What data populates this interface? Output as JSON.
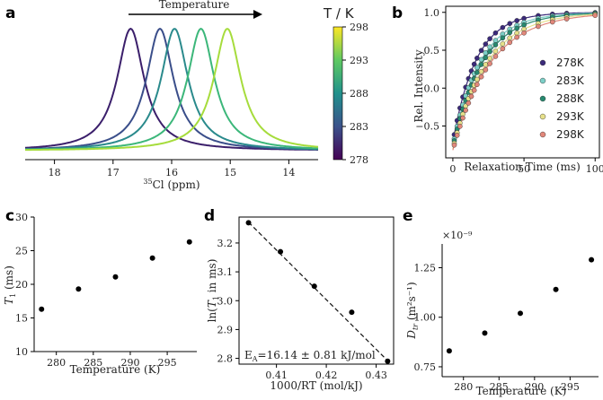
{
  "panels": {
    "a": "a",
    "b": "b",
    "c": "c",
    "d": "d",
    "e": "e"
  },
  "chart_data": [
    {
      "id": "a",
      "type": "line",
      "title": "Temperature",
      "xlabel": "35Cl (ppm)",
      "xlabel_sup": "35",
      "xlabel_main": "Cl (ppm)",
      "xlim": [
        18.5,
        13.5
      ],
      "xticks": [
        18,
        17,
        16,
        15,
        14
      ],
      "series": [
        {
          "name": "278 K",
          "center": 16.7,
          "color": "#3b1f6b"
        },
        {
          "name": "283 K",
          "center": 16.2,
          "color": "#3a4e8a"
        },
        {
          "name": "288 K",
          "center": 15.95,
          "color": "#2a8a8c"
        },
        {
          "name": "293 K",
          "center": 15.5,
          "color": "#3cb77a"
        },
        {
          "name": "298 K",
          "center": 15.05,
          "color": "#a6dc3c"
        }
      ],
      "colorbar": {
        "label": "T / K",
        "min": 278,
        "max": 298,
        "ticks": [
          278,
          283,
          288,
          293,
          298
        ]
      }
    },
    {
      "id": "b",
      "type": "scatter",
      "xlabel": "Relaxation Time (ms)",
      "ylabel": "Rel. Intensity",
      "xlim": [
        -5,
        103
      ],
      "ylim": [
        -0.92,
        1.08
      ],
      "xticks": [
        0,
        50,
        100
      ],
      "yticks": [
        -0.5,
        0.0,
        0.5,
        1.0
      ],
      "ytick_labels": [
        "−0.5",
        "0.0",
        "0.5",
        "1.0"
      ],
      "x_points": [
        1,
        3,
        5,
        7,
        9,
        11,
        13,
        15,
        17,
        20,
        23,
        26,
        30,
        35,
        40,
        45,
        50,
        60,
        70,
        80,
        100
      ],
      "series": [
        {
          "name": "278K",
          "T1": 16.3,
          "color": "#3b2a7a"
        },
        {
          "name": "283K",
          "T1": 19.3,
          "color": "#7ccfc7"
        },
        {
          "name": "288K",
          "T1": 21.1,
          "color": "#27896f"
        },
        {
          "name": "293K",
          "T1": 23.9,
          "color": "#e6e08a"
        },
        {
          "name": "298K",
          "T1": 26.3,
          "color": "#e1877a"
        }
      ]
    },
    {
      "id": "c",
      "type": "scatter",
      "xlabel": "Temperature (K)",
      "ylabel": "T1 (ms)",
      "ylabel_main": "T",
      "ylabel_sub": "1",
      "ylabel_unit": " (ms)",
      "xlim": [
        277,
        299
      ],
      "ylim": [
        10,
        30
      ],
      "xticks": [
        280,
        285,
        290,
        295
      ],
      "yticks": [
        10,
        15,
        20,
        25,
        30
      ],
      "x": [
        278,
        283,
        288,
        293,
        298
      ],
      "y": [
        16.3,
        19.3,
        21.1,
        23.9,
        26.3
      ]
    },
    {
      "id": "d",
      "type": "scatter",
      "xlabel": "1000/RT (mol/kJ)",
      "ylabel": "ln(T1 in ms)",
      "ylabel_pre": "ln(",
      "ylabel_main": "T",
      "ylabel_sub": "1",
      "ylabel_post": " in ms)",
      "xlim": [
        0.4025,
        0.4335
      ],
      "ylim": [
        2.78,
        3.29
      ],
      "xticks": [
        0.41,
        0.42,
        0.43
      ],
      "xtick_labels": [
        "0.41",
        "0.42",
        "0.43"
      ],
      "yticks": [
        2.8,
        2.9,
        3.0,
        3.1,
        3.2
      ],
      "ytick_labels": [
        "2.8",
        "2.9",
        "3.0",
        "3.1",
        "3.2"
      ],
      "x": [
        0.4044,
        0.4108,
        0.4176,
        0.4251,
        0.4323
      ],
      "y": [
        3.27,
        3.17,
        3.05,
        2.96,
        2.79
      ],
      "fit": {
        "x": [
          0.4044,
          0.4323
        ],
        "y": [
          3.272,
          2.792
        ]
      },
      "annotation": {
        "pre": "E",
        "sub": "A",
        "post": "=16.14 ± 0.81 kJ/mol"
      }
    },
    {
      "id": "e",
      "type": "scatter",
      "xlabel": "Temperature (K)",
      "ylabel": "Dtr (m2s-1)",
      "ylabel_main": "D",
      "ylabel_sub": "tr",
      "ylabel_unit": " (m²s⁻¹)",
      "scale": "×10⁻⁹",
      "xlim": [
        277,
        299
      ],
      "ylim": [
        0.7,
        1.37
      ],
      "xticks": [
        280,
        285,
        290,
        295
      ],
      "yticks": [
        0.75,
        1.0,
        1.25
      ],
      "ytick_labels": [
        "0.75",
        "1.00",
        "1.25"
      ],
      "x": [
        278,
        283,
        288,
        293,
        298
      ],
      "y": [
        0.83,
        0.92,
        1.02,
        1.14,
        1.29
      ]
    }
  ]
}
